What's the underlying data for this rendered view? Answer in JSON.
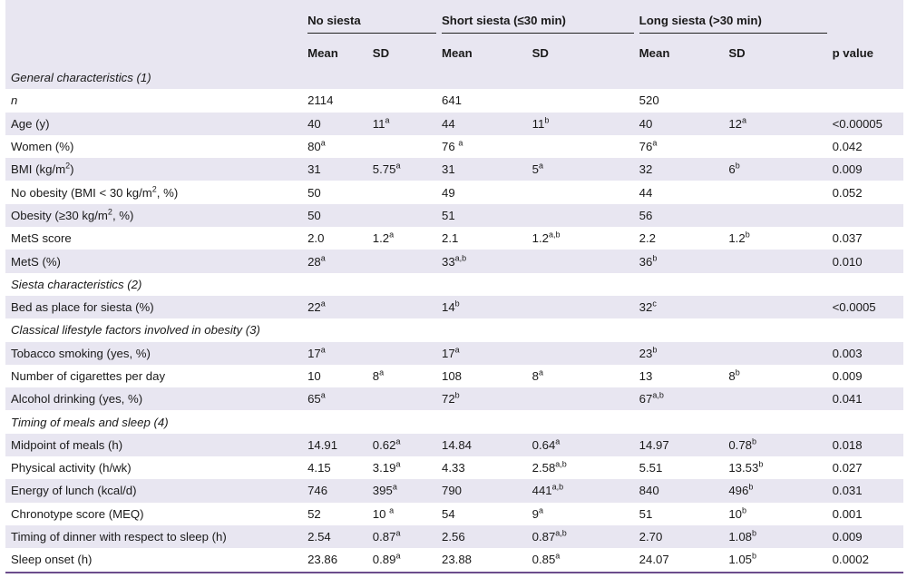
{
  "header": {
    "groups": [
      "No siesta",
      "Short siesta (≤30 min)",
      "Long siesta (>30 min)"
    ],
    "mean": "Mean",
    "sd": "SD",
    "p": "p value"
  },
  "rows": [
    {
      "type": "section",
      "label": "General characteristics (1)"
    },
    {
      "label": "n",
      "italic": true,
      "m1": "2114",
      "s1": "",
      "s1sup": "",
      "m1sup": "",
      "m2": "641",
      "m2sup": "",
      "s2": "",
      "s2sup": "",
      "m3": "520",
      "m3sup": "",
      "s3": "",
      "s3sup": "",
      "p": ""
    },
    {
      "label": "Age (y)",
      "m1": "40",
      "m1sup": "",
      "s1": "11",
      "s1sup": "a",
      "m2": "44",
      "m2sup": "",
      "s2": "11",
      "s2sup": "b",
      "m3": "40",
      "m3sup": "",
      "s3": "12",
      "s3sup": "a",
      "p": "<0.00005"
    },
    {
      "label": "Women (%)",
      "m1": "80",
      "m1sup": "a",
      "s1": "",
      "s1sup": "",
      "m2": "76 ",
      "m2sup": "a",
      "s2": "",
      "s2sup": "",
      "m3": "76",
      "m3sup": "a",
      "s3": "",
      "s3sup": "",
      "p": "0.042"
    },
    {
      "label": "BMI (kg/m",
      "labelsup": "2",
      "labelafter": ")",
      "m1": "31",
      "m1sup": "",
      "s1": "5.75",
      "s1sup": "a",
      "m2": "31",
      "m2sup": "",
      "s2": "5",
      "s2sup": "a",
      "m3": "32",
      "m3sup": "",
      "s3": "6",
      "s3sup": "b",
      "p": "0.009"
    },
    {
      "label": "No obesity (BMI < 30 kg/m",
      "labelsup": "2",
      "labelafter": ", %)",
      "m1": "50",
      "m1sup": "",
      "s1": "",
      "s1sup": "",
      "m2": "49",
      "m2sup": "",
      "s2": "",
      "s2sup": "",
      "m3": "44",
      "m3sup": "",
      "s3": "",
      "s3sup": "",
      "p": "0.052"
    },
    {
      "label": "Obesity (≥30 kg/m",
      "labelsup": "2",
      "labelafter": ", %)",
      "m1": "50",
      "m1sup": "",
      "s1": "",
      "s1sup": "",
      "m2": "51",
      "m2sup": "",
      "s2": "",
      "s2sup": "",
      "m3": "56",
      "m3sup": "",
      "s3": "",
      "s3sup": "",
      "p": ""
    },
    {
      "label": "MetS score",
      "m1": "2.0",
      "m1sup": "",
      "s1": "1.2",
      "s1sup": "a",
      "m2": "2.1",
      "m2sup": "",
      "s2": "1.2",
      "s2sup": "a,b",
      "m3": "2.2",
      "m3sup": "",
      "s3": "1.2",
      "s3sup": "b",
      "p": "0.037"
    },
    {
      "label": "MetS (%)",
      "m1": "28",
      "m1sup": "a",
      "s1": "",
      "s1sup": "",
      "m2": "33",
      "m2sup": "a,b",
      "s2": "",
      "s2sup": "",
      "m3": "36",
      "m3sup": "b",
      "s3": "",
      "s3sup": "",
      "p": "0.010"
    },
    {
      "type": "section",
      "label": "Siesta characteristics (2)"
    },
    {
      "label": "Bed as place for siesta (%)",
      "m1": "22",
      "m1sup": "a",
      "s1": "",
      "s1sup": "",
      "m2": "14",
      "m2sup": "b",
      "s2": "",
      "s2sup": "",
      "m3": "32",
      "m3sup": "c",
      "s3": "",
      "s3sup": "",
      "p": "<0.0005"
    },
    {
      "type": "section",
      "label": "Classical lifestyle factors involved in obesity (3)"
    },
    {
      "label": "Tobacco smoking (yes, %)",
      "m1": "17",
      "m1sup": "a",
      "s1": "",
      "s1sup": "",
      "m2": "17",
      "m2sup": "a",
      "s2": "",
      "s2sup": "",
      "m3": "23",
      "m3sup": "b",
      "s3": "",
      "s3sup": "",
      "p": "0.003"
    },
    {
      "label": "Number of cigarettes per day",
      "m1": "10",
      "m1sup": "",
      "s1": "8",
      "s1sup": "a",
      "m2": "108",
      "m2sup": "",
      "s2": "8",
      "s2sup": "a",
      "m3": "13",
      "m3sup": "",
      "s3": "8",
      "s3sup": "b",
      "p": "0.009"
    },
    {
      "label": "Alcohol drinking (yes, %)",
      "m1": "65",
      "m1sup": "a",
      "s1": "",
      "s1sup": "",
      "m2": "72",
      "m2sup": "b",
      "s2": "",
      "s2sup": "",
      "m3": "67",
      "m3sup": "a,b",
      "s3": "",
      "s3sup": "",
      "p": "0.041"
    },
    {
      "type": "section",
      "label": "Timing of meals and sleep (4)"
    },
    {
      "label": "Midpoint of meals (h)",
      "m1": "14.91",
      "m1sup": "",
      "s1": "0.62",
      "s1sup": "a",
      "m2": "14.84",
      "m2sup": "",
      "s2": "0.64",
      "s2sup": "a",
      "m3": "14.97",
      "m3sup": "",
      "s3": "0.78",
      "s3sup": "b",
      "p": "0.018"
    },
    {
      "label": "Physical activity (h/wk)",
      "m1": "4.15",
      "m1sup": "",
      "s1": "3.19",
      "s1sup": "a",
      "m2": "4.33",
      "m2sup": "",
      "s2": "2.58",
      "s2sup": "a,b",
      "m3": "5.51",
      "m3sup": "",
      "s3": "13.53",
      "s3sup": "b",
      "p": "0.027"
    },
    {
      "label": "Energy of lunch (kcal/d)",
      "m1": "746",
      "m1sup": "",
      "s1": "395",
      "s1sup": "a",
      "m2": "790",
      "m2sup": "",
      "s2": "441",
      "s2sup": "a,b",
      "m3": "840",
      "m3sup": "",
      "s3": "496",
      "s3sup": "b",
      "p": "0.031"
    },
    {
      "label": "Chronotype score (MEQ)",
      "m1": "52",
      "m1sup": "",
      "s1": "10 ",
      "s1sup": "a",
      "m2": "54",
      "m2sup": "",
      "s2": "9",
      "s2sup": "a",
      "m3": "51",
      "m3sup": "",
      "s3": "10",
      "s3sup": "b",
      "p": "0.001"
    },
    {
      "label": "Timing of dinner with respect to sleep (h)",
      "m1": "2.54",
      "m1sup": "",
      "s1": "0.87",
      "s1sup": "a",
      "m2": "2.56",
      "m2sup": "",
      "s2": "0.87",
      "s2sup": "a,b",
      "m3": "2.70",
      "m3sup": "",
      "s3": "1.08",
      "s3sup": "b",
      "p": "0.009"
    },
    {
      "label": "Sleep onset (h)",
      "m1": "23.86",
      "m1sup": "",
      "s1": "0.89",
      "s1sup": "a",
      "m2": "23.88",
      "m2sup": "",
      "s2": "0.85",
      "s2sup": "a",
      "m3": "24.07",
      "m3sup": "",
      "s3": "1.05",
      "s3sup": "b",
      "p": "0.0002"
    }
  ]
}
